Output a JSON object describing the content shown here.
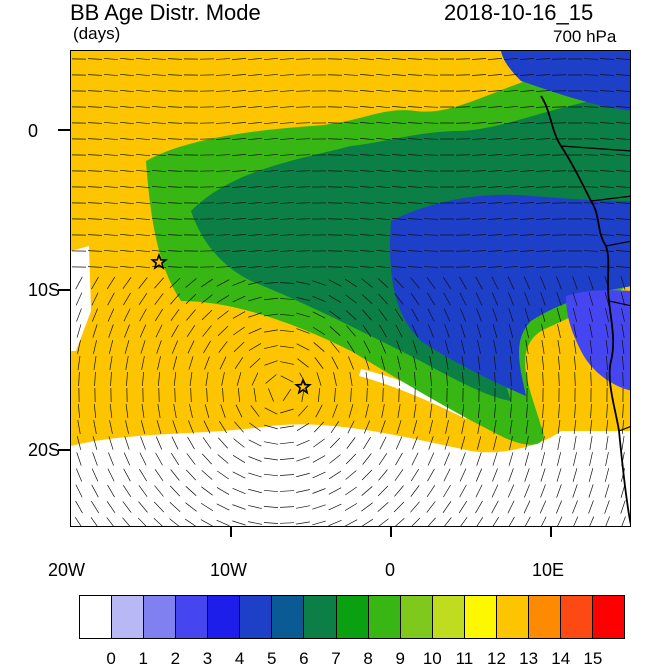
{
  "header": {
    "title": "BB Age Distr. Mode",
    "units": "(days)",
    "timestamp": "2018-10-16_15",
    "level": "700 hPa"
  },
  "axes": {
    "lat_labels": [
      "0",
      "10S",
      "20S"
    ],
    "lon_labels": [
      "20W",
      "10W",
      "0",
      "10E"
    ]
  },
  "colorbar": {
    "labels": [
      "0",
      "1",
      "2",
      "3",
      "4",
      "5",
      "6",
      "7",
      "8",
      "9",
      "10",
      "11",
      "12",
      "13",
      "14",
      "15"
    ],
    "colors": [
      "#ffffff",
      "#b8b8f4",
      "#8080f0",
      "#4646f0",
      "#1e1eea",
      "#1e3fc8",
      "#0a5a96",
      "#0b7f45",
      "#0aa012",
      "#38b614",
      "#7fc81c",
      "#c0dc1e",
      "#fdf800",
      "#fdc400",
      "#fd8a00",
      "#fd4a14",
      "#fd0000"
    ]
  },
  "markers": [
    {
      "name": "star-marker-west",
      "lat": -8.2,
      "lon": -14.5
    },
    {
      "name": "star-marker-south",
      "lat": -16.0,
      "lon": -5.5
    }
  ],
  "field_colors": {
    "ocean_far": "#fdc400",
    "plume_outer": "#38b614",
    "plume_mid": "#0b7f45",
    "plume_core": "#1e3fc8",
    "plume_deep": "#4646f0",
    "low_age": "#ffffff",
    "coast": "#000000",
    "vector": "#111111"
  }
}
